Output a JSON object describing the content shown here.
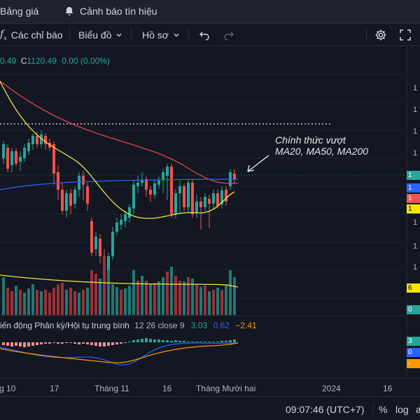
{
  "topbar": {
    "price_board": "Bảng giá",
    "alerts": "Cảnh báo tín hiệu"
  },
  "toolbar": {
    "indicators": "Các chỉ báo",
    "chart": "Biểu đồ",
    "profile": "Hồ sơ"
  },
  "legend": {
    "prefix": "0.49",
    "close_label": "C",
    "close_value": "1120.49",
    "change": "0.00 (0.00%)"
  },
  "annotation": {
    "line1": "Chính thức vượt",
    "line2": "MA20, MA50, MA200"
  },
  "price_tags": [
    {
      "text": "1",
      "color": "#26a69a"
    },
    {
      "text": "1",
      "color": "#2962ff"
    },
    {
      "text": "1",
      "color": "#ef5350"
    },
    {
      "text": "1",
      "color": "#f7e600"
    },
    {
      "text": "6",
      "color": "#f7e600"
    },
    {
      "text": "0",
      "color": "#26a69a"
    }
  ],
  "yaxis_labels": [
    "1",
    "1",
    "1",
    "1",
    "1",
    "1",
    "1"
  ],
  "macd": {
    "name": "iến động Phân kỳ/Hội tụ trung bình",
    "params": "12 26 close 9",
    "v1": "3.03",
    "v2": "0.62",
    "v3": "−2.41",
    "tags": [
      {
        "text": "3",
        "color": "#26a69a"
      },
      {
        "text": "0",
        "color": "#2962ff"
      },
      {
        "text": "-",
        "color": "#ff9800"
      }
    ]
  },
  "xaxis": [
    "g 10",
    "17",
    "Tháng 11",
    "16",
    "Tháng Mười hai",
    "2024",
    "16"
  ],
  "status": {
    "time": "09:07:46 (UTC+7)",
    "percent": "%",
    "log": "log"
  },
  "colors": {
    "up": "#26a69a",
    "down": "#ef5350",
    "ma_red": "#e0424b",
    "ma_blue": "#2962ff",
    "ma_yellow": "#f0e442"
  },
  "icons": [
    "bell-icon",
    "fx-icon",
    "chevron-down-icon",
    "undo-icon",
    "redo-icon",
    "gear-icon",
    "fullscreen-icon",
    "arrow-icon"
  ]
}
